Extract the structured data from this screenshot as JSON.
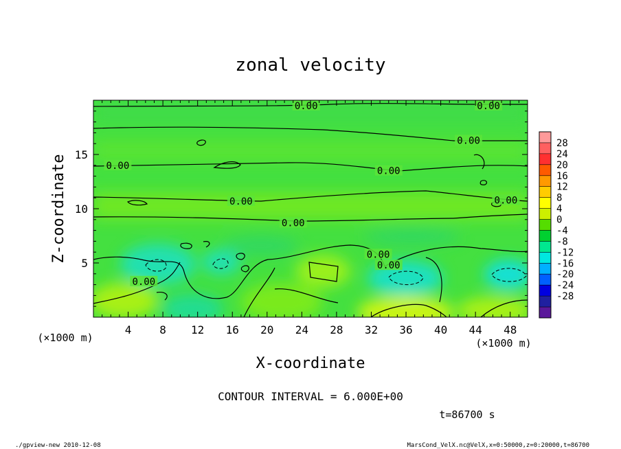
{
  "chart_data": {
    "type": "heatmap",
    "title": "zonal velocity",
    "xlabel": "X-coordinate",
    "ylabel": "Z-coordinate",
    "x_unit": "(×1000 m)",
    "xlim": [
      0,
      50
    ],
    "ylim": [
      0,
      20
    ],
    "x_ticks": [
      4,
      8,
      12,
      16,
      20,
      24,
      28,
      32,
      36,
      40,
      44,
      48
    ],
    "y_ticks": [
      5,
      10,
      15
    ],
    "colorbar": {
      "labels": [
        "28",
        "24",
        "20",
        "16",
        "12",
        "8",
        "4",
        "0",
        "-4",
        "-8",
        "-12",
        "-16",
        "-20",
        "-24",
        "-28"
      ],
      "levels": [
        28,
        24,
        20,
        16,
        12,
        8,
        4,
        0,
        -4,
        -8,
        -12,
        -16,
        -20,
        -24,
        -28
      ],
      "colors": [
        "#ff9a9a",
        "#ff6060",
        "#ff3030",
        "#ff5a00",
        "#ff9900",
        "#ffcc00",
        "#ffff00",
        "#ccf000",
        "#55dd00",
        "#00d030",
        "#00e890",
        "#00e8e0",
        "#00b0ff",
        "#0060ff",
        "#0000e0",
        "#2020a0",
        "#5a189a"
      ]
    },
    "contour_labels": [
      {
        "text": "0.00",
        "x": 24.5,
        "z": 19.5
      },
      {
        "text": "0.00",
        "x": 45.5,
        "z": 19.5
      },
      {
        "text": "0.00",
        "x": 43.2,
        "z": 16.3
      },
      {
        "text": "0.00",
        "x": 2.8,
        "z": 14.0
      },
      {
        "text": "0.00",
        "x": 34.0,
        "z": 13.5
      },
      {
        "text": "0.00",
        "x": 17.0,
        "z": 10.7
      },
      {
        "text": "0.00",
        "x": 23.0,
        "z": 8.7
      },
      {
        "text": "0.00",
        "x": 47.5,
        "z": 10.8
      },
      {
        "text": "0.00",
        "x": 32.8,
        "z": 5.8
      },
      {
        "text": "0.00",
        "x": 34.0,
        "z": 4.8
      },
      {
        "text": "0.00",
        "x": 5.8,
        "z": 3.3
      }
    ],
    "contour_interval_text": "CONTOUR INTERVAL = 6.000E+00",
    "time_text": "t=86700 s"
  },
  "footer": {
    "left": "./gpview-new  2010-12-08",
    "right": "MarsCond_VelX.nc@VelX,x=0:50000,z=0:20000,t=86700"
  },
  "colors": {
    "field_base": "#44e040",
    "warm_green": "#88ea1c",
    "cool_green": "#22e08a",
    "cyan": "#00e2d8"
  }
}
